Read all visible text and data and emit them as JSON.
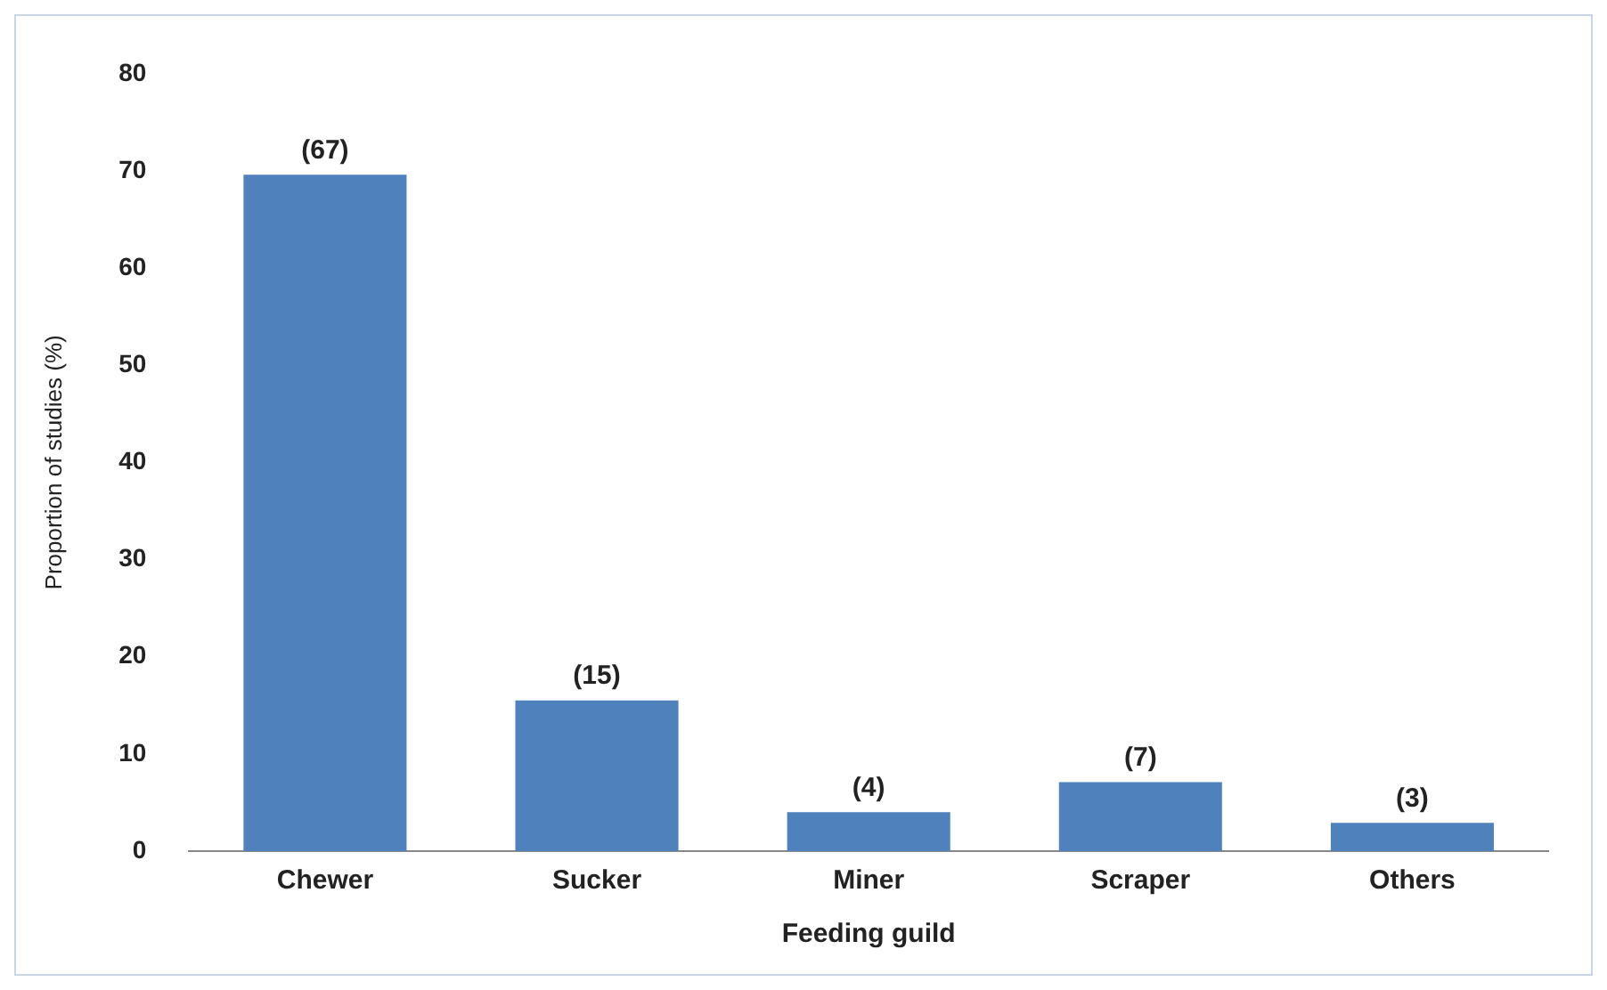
{
  "chart_data": {
    "type": "bar",
    "xlabel": "Feeding guild",
    "ylabel": "Proportion of studies (%)",
    "categories": [
      "Chewer",
      "Sucker",
      "Miner",
      "Scraper",
      "Others"
    ],
    "values": [
      69.6,
      15.5,
      4.0,
      7.1,
      2.9
    ],
    "annotations": [
      {
        "text": "(67)",
        "x": "Chewer",
        "y": 69.6
      },
      {
        "text": "(15)",
        "x": "Sucker",
        "y": 15.5
      },
      {
        "text": "(4)",
        "x": "Miner",
        "y": 4.0
      },
      {
        "text": "(7)",
        "x": "Scraper",
        "y": 7.1
      },
      {
        "text": "(3)",
        "x": "Others",
        "y": 2.9
      }
    ],
    "color": "#4f81bd",
    "ylim": [
      0,
      80
    ],
    "yticks": [
      0,
      10,
      20,
      30,
      40,
      50,
      60,
      70,
      80
    ],
    "grid": false,
    "legend": false
  }
}
